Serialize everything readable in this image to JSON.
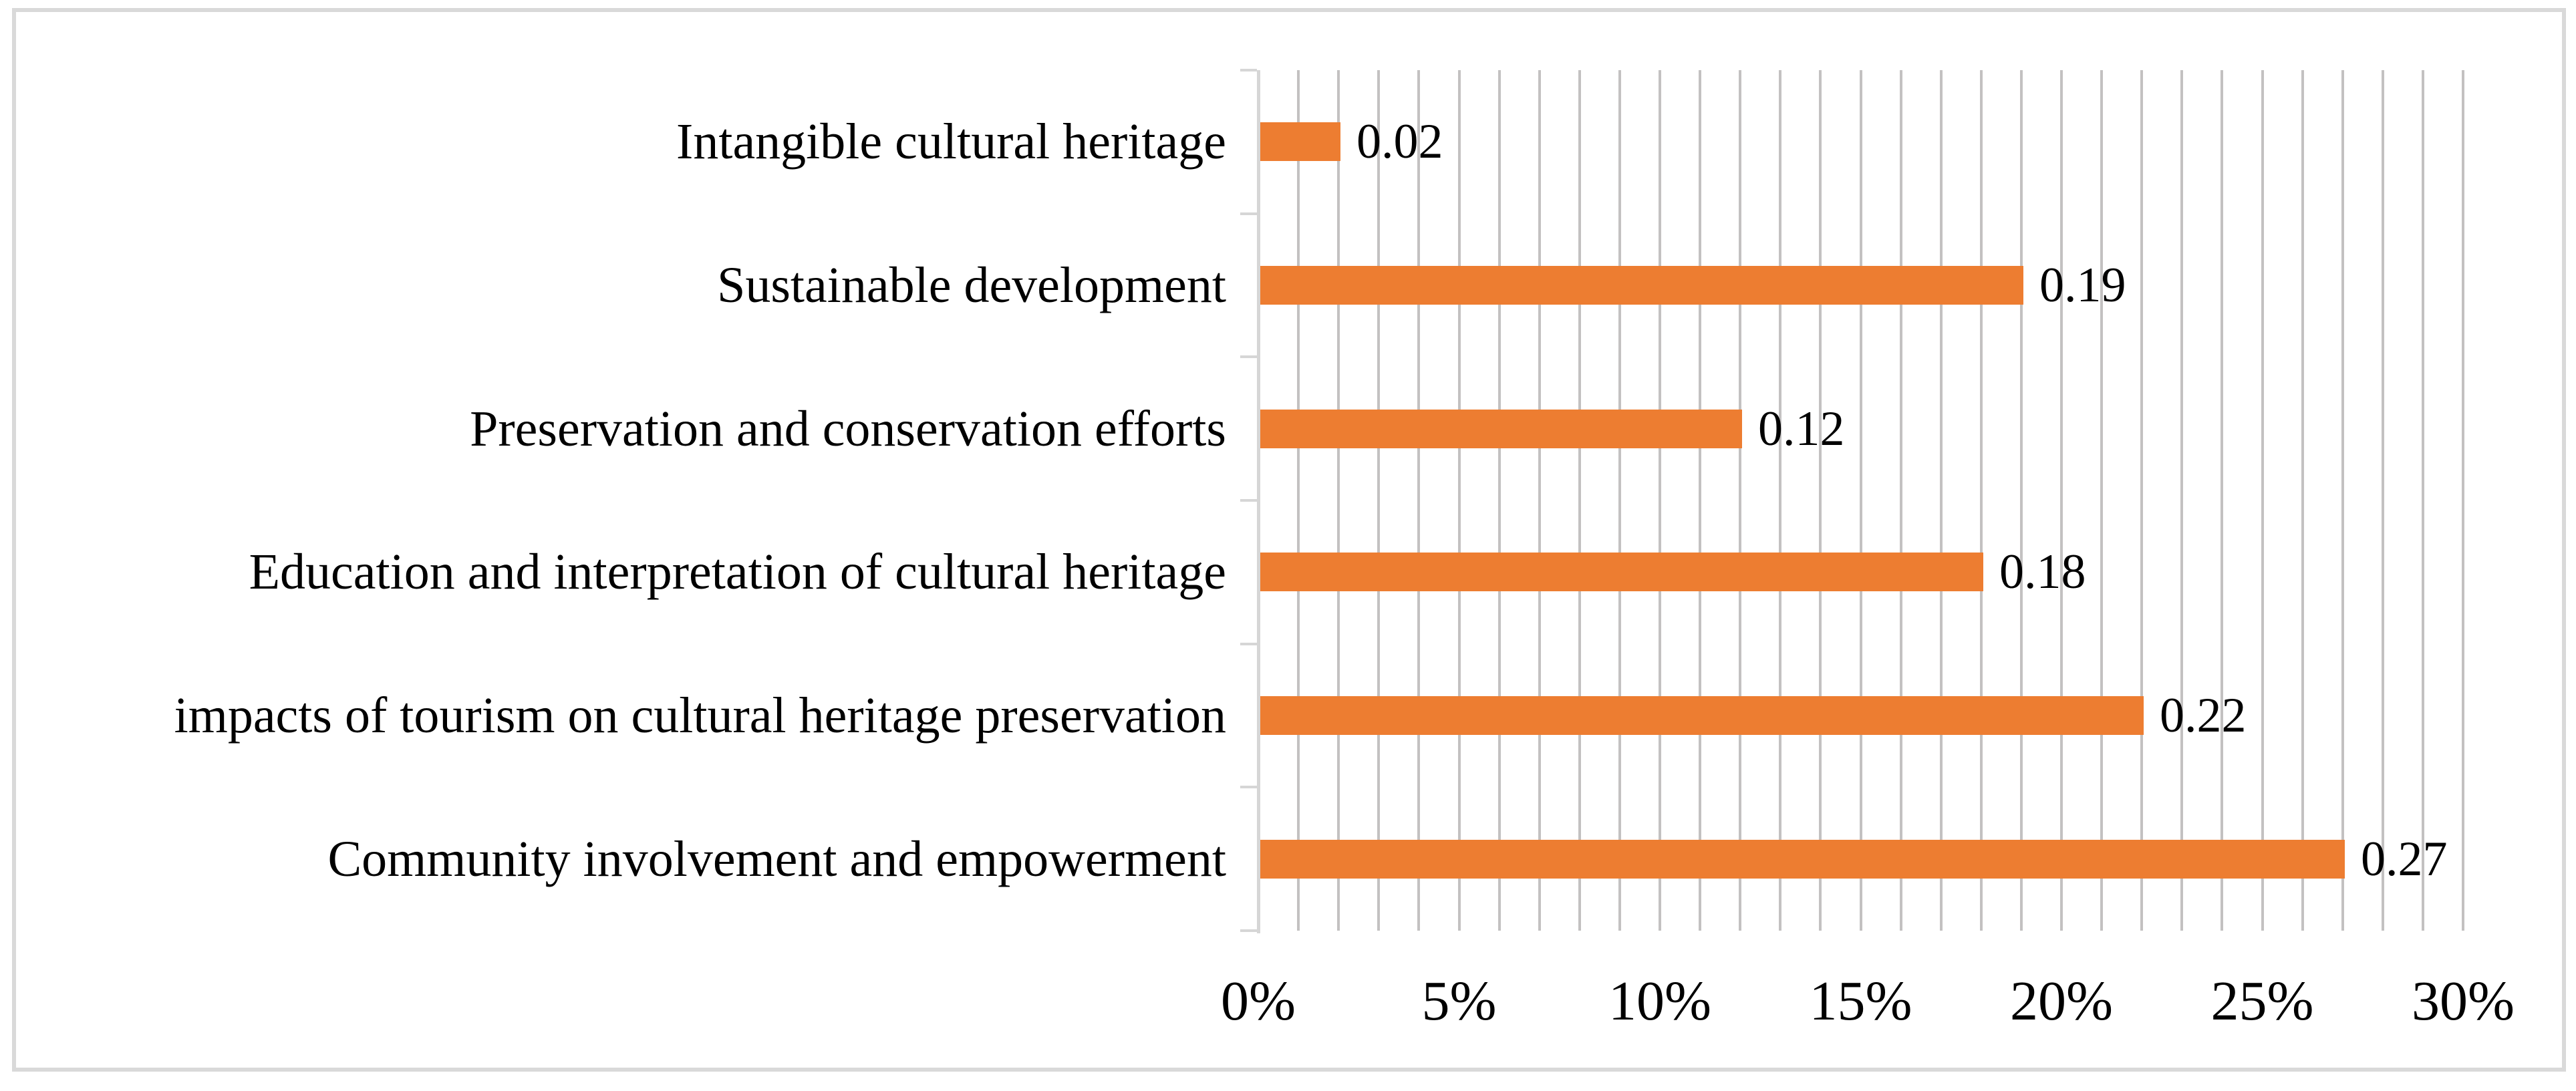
{
  "chart_data": {
    "type": "bar",
    "orientation": "horizontal",
    "title": "",
    "xlabel": "",
    "ylabel": "",
    "legend": "none",
    "grid": true,
    "categories": [
      "Intangible cultural heritage",
      "Sustainable development",
      "Preservation and conservation efforts",
      "Education and interpretation of cultural heritage",
      "impacts of tourism on cultural heritage preservation",
      "Community involvement and empowerment"
    ],
    "values": [
      0.02,
      0.19,
      0.12,
      0.18,
      0.22,
      0.27
    ],
    "data_labels": [
      "0.02",
      "0.19",
      "0.12",
      "0.18",
      "0.22",
      "0.27"
    ],
    "x_axis": {
      "min": 0,
      "max": 0.3,
      "tick_labels": [
        "0%",
        "5%",
        "10%",
        "15%",
        "20%",
        "25%",
        "30%"
      ],
      "tick_values": [
        0,
        0.05,
        0.1,
        0.15,
        0.2,
        0.25,
        0.3
      ],
      "gridline_step": 0.01
    },
    "colors": {
      "bar": "#ed7d31",
      "gridline": "#c3c1c1",
      "axis": "#d6d6d6",
      "frame": "#d9d9d9",
      "text": "#000000"
    }
  }
}
